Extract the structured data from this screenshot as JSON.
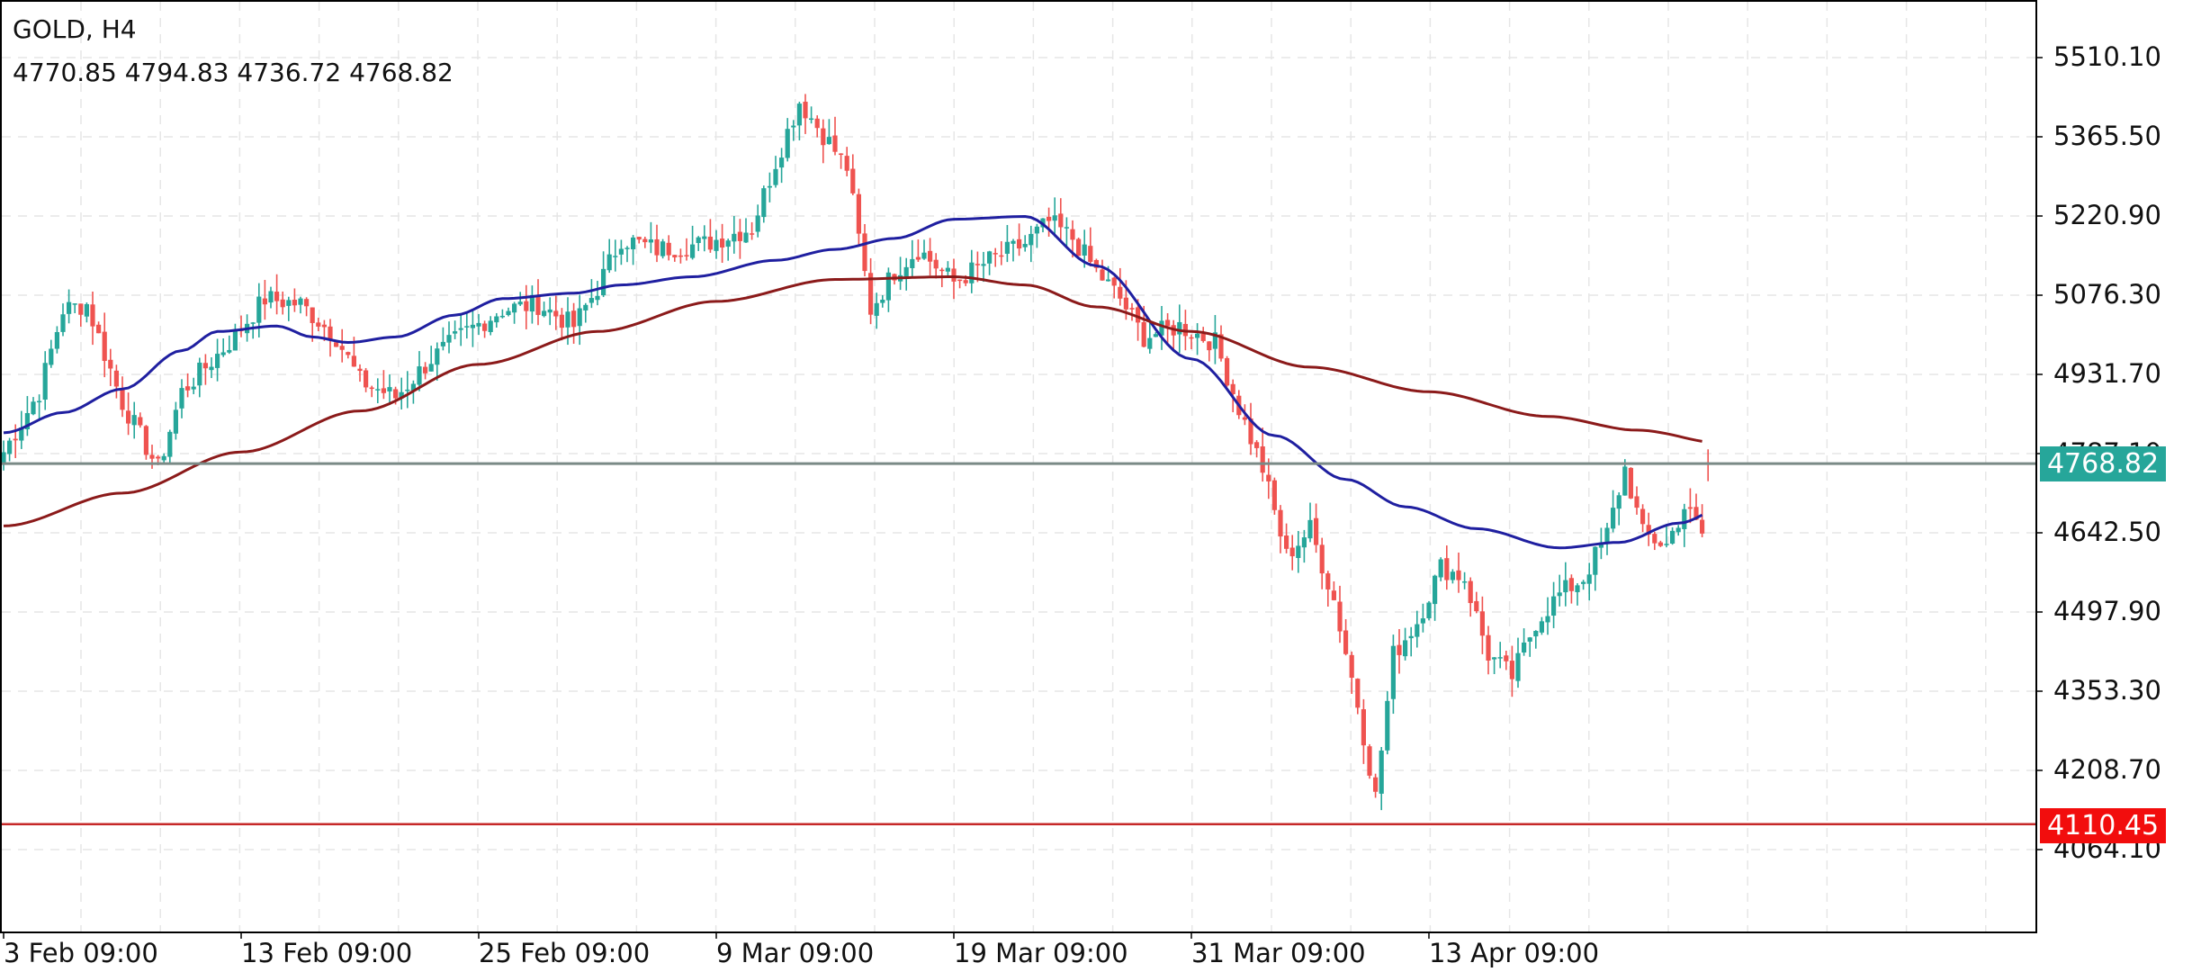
{
  "header": {
    "title": "GOLD, H4",
    "ohlc": "4770.85 4794.83 4736.72 4768.82"
  },
  "colors": {
    "bull": "#26a69a",
    "bear": "#ef5350",
    "ma_fast": "#1f1fa0",
    "ma_slow": "#8b1a1a",
    "current_line": "#7a8a86",
    "current_tag": "#26a69a",
    "level_line": "#c62828",
    "level_tag": "#f20d0d",
    "grid": "#e6e6e6",
    "axis": "#000000"
  },
  "price_axis": {
    "ticks": [
      "5510.10",
      "5365.50",
      "5220.90",
      "5076.30",
      "4931.70",
      "4787.10",
      "4642.50",
      "4497.90",
      "4353.30",
      "4208.70",
      "4064.10"
    ]
  },
  "time_axis": {
    "ticks": [
      "3 Feb 09:00",
      "13 Feb 09:00",
      "25 Feb 09:00",
      "9 Mar 09:00",
      "19 Mar 09:00",
      "31 Mar 09:00",
      "13 Apr 09:00"
    ]
  },
  "price_tags": {
    "current": "4768.82",
    "level": "4110.45"
  },
  "chart_data": {
    "type": "candlestick",
    "title": "GOLD, H4",
    "last_ohlc": {
      "open": 4770.85,
      "high": 4794.83,
      "low": 4736.72,
      "close": 4768.82
    },
    "xlabel": "",
    "ylabel": "",
    "ylim": [
      4000.0,
      5560.0
    ],
    "y_ticks": [
      5510.1,
      5365.5,
      5220.9,
      5076.3,
      4931.7,
      4787.1,
      4642.5,
      4497.9,
      4353.3,
      4208.7,
      4064.1
    ],
    "x_ticks": [
      "3 Feb 09:00",
      "13 Feb 09:00",
      "25 Feb 09:00",
      "9 Mar 09:00",
      "19 Mar 09:00",
      "31 Mar 09:00",
      "13 Apr 09:00"
    ],
    "horizontal_lines": [
      {
        "name": "current_price",
        "value": 4768.82
      },
      {
        "name": "support_level",
        "value": 4110.45
      }
    ],
    "series_path": {
      "description": "approximate close path (anchor points, interpolated into ~288 H4 candles)",
      "anchors": [
        [
          0,
          4790
        ],
        [
          6,
          4900
        ],
        [
          10,
          5050
        ],
        [
          14,
          5060
        ],
        [
          20,
          4880
        ],
        [
          26,
          4760
        ],
        [
          30,
          4900
        ],
        [
          38,
          4990
        ],
        [
          44,
          5070
        ],
        [
          50,
          5060
        ],
        [
          56,
          5000
        ],
        [
          60,
          4920
        ],
        [
          66,
          4890
        ],
        [
          72,
          4960
        ],
        [
          78,
          5010
        ],
        [
          84,
          5050
        ],
        [
          90,
          5060
        ],
        [
          96,
          5020
        ],
        [
          100,
          5090
        ],
        [
          104,
          5180
        ],
        [
          110,
          5160
        ],
        [
          118,
          5170
        ],
        [
          126,
          5200
        ],
        [
          130,
          5320
        ],
        [
          134,
          5430
        ],
        [
          138,
          5370
        ],
        [
          142,
          5310
        ],
        [
          146,
          5050
        ],
        [
          150,
          5120
        ],
        [
          154,
          5160
        ],
        [
          160,
          5100
        ],
        [
          166,
          5140
        ],
        [
          172,
          5170
        ],
        [
          176,
          5210
        ],
        [
          180,
          5180
        ],
        [
          184,
          5120
        ],
        [
          188,
          5070
        ],
        [
          192,
          5000
        ],
        [
          198,
          5020
        ],
        [
          204,
          4990
        ],
        [
          208,
          4870
        ],
        [
          212,
          4760
        ],
        [
          216,
          4600
        ],
        [
          220,
          4650
        ],
        [
          224,
          4520
        ],
        [
          228,
          4330
        ],
        [
          231,
          4160
        ],
        [
          234,
          4420
        ],
        [
          238,
          4480
        ],
        [
          242,
          4580
        ],
        [
          246,
          4560
        ],
        [
          250,
          4420
        ],
        [
          254,
          4380
        ],
        [
          258,
          4480
        ],
        [
          262,
          4530
        ],
        [
          266,
          4560
        ],
        [
          270,
          4640
        ],
        [
          273,
          4760
        ],
        [
          276,
          4640
        ],
        [
          280,
          4620
        ],
        [
          283,
          4690
        ],
        [
          286,
          4640
        ]
      ]
    },
    "moving_averages": [
      {
        "name": "MA fast (blue)",
        "color": "#1f1fa0",
        "points": [
          [
            0,
            4825
          ],
          [
            10,
            4862
          ],
          [
            20,
            4905
          ],
          [
            30,
            4975
          ],
          [
            36,
            5010
          ],
          [
            46,
            5020
          ],
          [
            52,
            5000
          ],
          [
            58,
            4990
          ],
          [
            66,
            5000
          ],
          [
            76,
            5040
          ],
          [
            84,
            5070
          ],
          [
            96,
            5080
          ],
          [
            104,
            5095
          ],
          [
            116,
            5110
          ],
          [
            130,
            5140
          ],
          [
            140,
            5160
          ],
          [
            150,
            5180
          ],
          [
            160,
            5215
          ],
          [
            172,
            5220
          ],
          [
            184,
            5130
          ],
          [
            200,
            4960
          ],
          [
            214,
            4820
          ],
          [
            226,
            4740
          ],
          [
            236,
            4690
          ],
          [
            248,
            4650
          ],
          [
            262,
            4615
          ],
          [
            272,
            4625
          ],
          [
            282,
            4660
          ],
          [
            290,
            4690
          ]
        ]
      },
      {
        "name": "MA slow (maroon)",
        "color": "#8b1a1a",
        "points": [
          [
            0,
            4655
          ],
          [
            20,
            4715
          ],
          [
            40,
            4790
          ],
          [
            60,
            4865
          ],
          [
            80,
            4950
          ],
          [
            100,
            5010
          ],
          [
            120,
            5065
          ],
          [
            140,
            5105
          ],
          [
            160,
            5110
          ],
          [
            172,
            5095
          ],
          [
            184,
            5055
          ],
          [
            200,
            5010
          ],
          [
            220,
            4945
          ],
          [
            240,
            4900
          ],
          [
            260,
            4855
          ],
          [
            275,
            4830
          ],
          [
            290,
            4805
          ]
        ]
      }
    ]
  }
}
